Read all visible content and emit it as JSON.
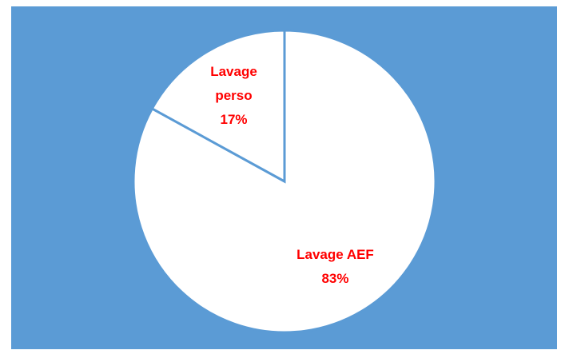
{
  "chart_data": {
    "type": "pie",
    "categories": [
      "Lavage AEF",
      "Lavage perso"
    ],
    "values": [
      83,
      17
    ],
    "value_labels": [
      "83%",
      "17%"
    ],
    "colors": [
      "#ffffff",
      "#ffffff"
    ],
    "background": "#5b9bd5",
    "label_color": "#ff0000"
  }
}
